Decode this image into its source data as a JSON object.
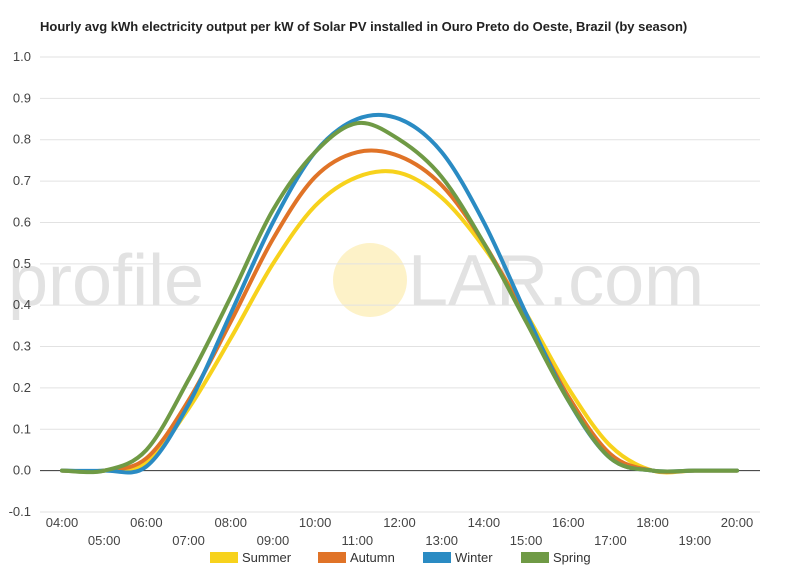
{
  "chart_data": {
    "type": "line",
    "title": "Hourly avg kWh electricity output per kW of Solar PV installed in Ouro Preto do Oeste, Brazil (by season)",
    "watermark": {
      "left": "profile",
      "right": "LAR.com"
    },
    "ylim": [
      -0.1,
      1.0
    ],
    "y_ticks": [
      "-0.1",
      "0.0",
      "0.1",
      "0.2",
      "0.3",
      "0.4",
      "0.5",
      "0.6",
      "0.7",
      "0.8",
      "0.9",
      "1.0"
    ],
    "x_ticks_upper": [
      "04:00",
      "06:00",
      "08:00",
      "10:00",
      "12:00",
      "14:00",
      "16:00",
      "18:00",
      "20:00"
    ],
    "x_ticks_lower": [
      "05:00",
      "07:00",
      "09:00",
      "11:00",
      "13:00",
      "15:00",
      "17:00",
      "19:00"
    ],
    "x": [
      "04:00",
      "05:00",
      "06:00",
      "07:00",
      "08:00",
      "09:00",
      "10:00",
      "11:00",
      "12:00",
      "13:00",
      "14:00",
      "15:00",
      "16:00",
      "17:00",
      "18:00",
      "19:00",
      "20:00"
    ],
    "series": [
      {
        "name": "Summer",
        "color": "#f7d21c",
        "values": [
          0.0,
          0.0,
          0.02,
          0.15,
          0.32,
          0.5,
          0.64,
          0.71,
          0.72,
          0.66,
          0.54,
          0.38,
          0.2,
          0.06,
          0.0,
          0.0,
          0.0
        ]
      },
      {
        "name": "Autumn",
        "color": "#e07327",
        "values": [
          0.0,
          0.0,
          0.03,
          0.17,
          0.36,
          0.56,
          0.71,
          0.77,
          0.76,
          0.69,
          0.55,
          0.37,
          0.18,
          0.04,
          0.0,
          0.0,
          0.0
        ]
      },
      {
        "name": "Winter",
        "color": "#2a8bc3",
        "values": [
          0.0,
          0.0,
          0.01,
          0.16,
          0.38,
          0.6,
          0.77,
          0.85,
          0.85,
          0.77,
          0.6,
          0.38,
          0.17,
          0.03,
          0.0,
          0.0,
          0.0
        ]
      },
      {
        "name": "Spring",
        "color": "#6f9a45",
        "values": [
          0.0,
          0.0,
          0.05,
          0.22,
          0.42,
          0.63,
          0.77,
          0.84,
          0.8,
          0.71,
          0.55,
          0.36,
          0.17,
          0.03,
          0.0,
          0.0,
          0.0
        ]
      }
    ],
    "grid": true,
    "legend": "bottom-center"
  }
}
